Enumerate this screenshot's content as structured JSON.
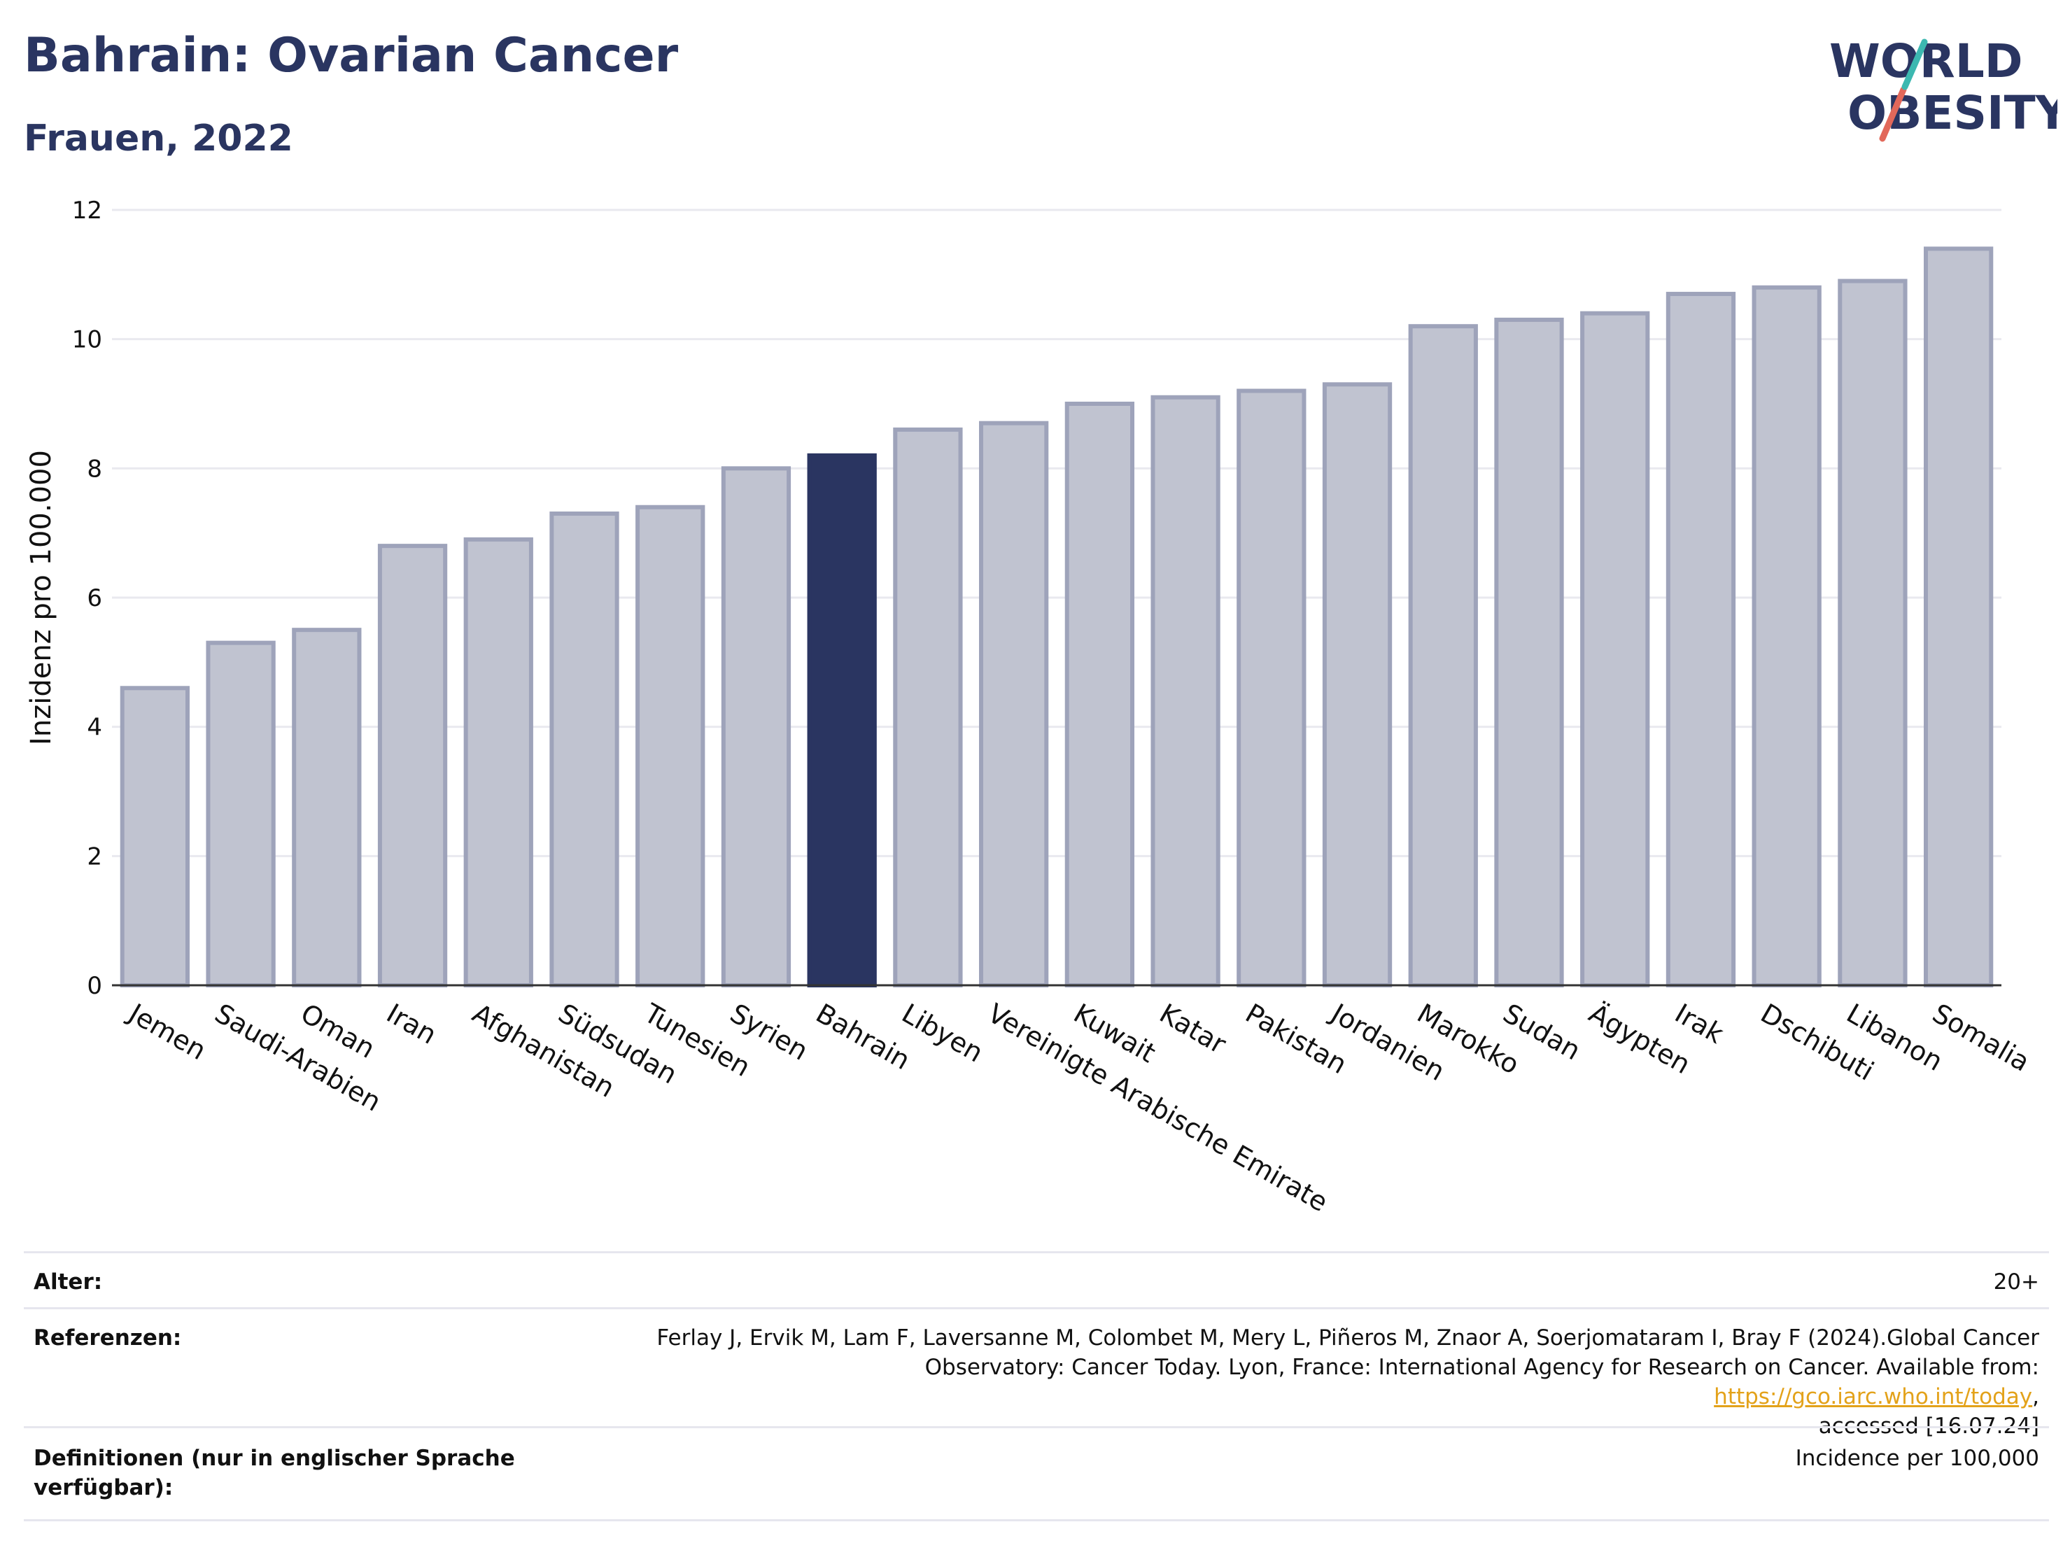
{
  "header": {
    "title": "Bahrain: Ovarian Cancer",
    "subtitle": "Frauen, 2022"
  },
  "logo": {
    "line1": "WORLD",
    "line2": "OBESITY",
    "icon": "world-obesity-logo"
  },
  "chart_data": {
    "type": "bar",
    "title": "Bahrain: Ovarian Cancer",
    "subtitle": "Frauen, 2022",
    "xlabel": "",
    "ylabel": "Inzidenz pro 100.000",
    "ylim": [
      0,
      12
    ],
    "yticks": [
      0,
      2,
      4,
      6,
      8,
      10,
      12
    ],
    "grid": true,
    "highlight": "Bahrain",
    "colors": {
      "bar": "#c0c3d0",
      "bar_stroke": "#9ea3ba",
      "highlight": "#2a3561"
    },
    "categories": [
      "Jemen",
      "Saudi-Arabien",
      "Oman",
      "Iran",
      "Afghanistan",
      "Südsudan",
      "Tunesien",
      "Syrien",
      "Bahrain",
      "Libyen",
      "Vereinigte Arabische Emirate",
      "Kuwait",
      "Katar",
      "Pakistan",
      "Jordanien",
      "Marokko",
      "Sudan",
      "Ägypten",
      "Irak",
      "Dschibuti",
      "Libanon",
      "Somalia"
    ],
    "values": [
      4.6,
      5.3,
      5.5,
      6.8,
      6.9,
      7.3,
      7.4,
      8.0,
      8.2,
      8.6,
      8.7,
      9.0,
      9.1,
      9.2,
      9.3,
      10.2,
      10.3,
      10.4,
      10.7,
      10.8,
      10.9,
      11.4
    ]
  },
  "meta": {
    "age_label": "Alter:",
    "age_value": "20+",
    "ref_label": "Referenzen:",
    "ref_line1": "Ferlay J, Ervik M, Lam F, Laversanne M, Colombet M, Mery L, Piñeros M, Znaor A, Soerjomataram I, Bray F (2024).Global Cancer",
    "ref_line2_prefix": "Observatory: Cancer Today. Lyon, France: International Agency for Research on Cancer. Available from: ",
    "ref_link": "https://gco.iarc.who.int/today",
    "ref_line2_suffix": ",",
    "ref_line3": "accessed [16.07.24]",
    "def_label_1": "Definitionen (nur in englischer Sprache",
    "def_label_2": "verfügbar):",
    "def_value": "Incidence per 100,000"
  }
}
